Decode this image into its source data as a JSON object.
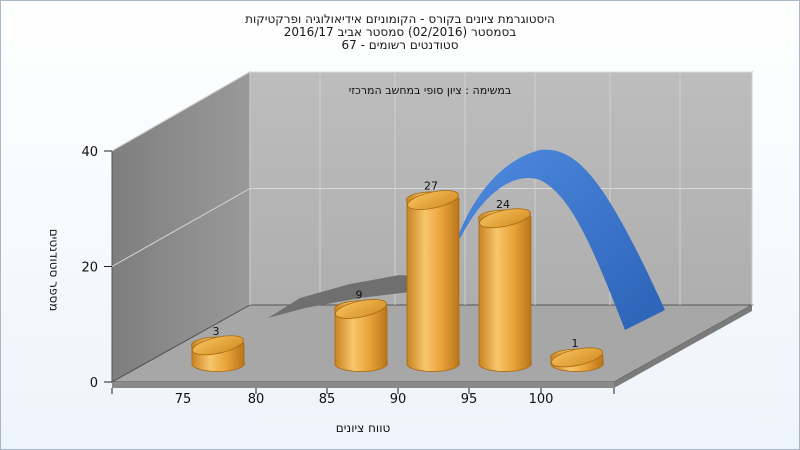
{
  "header": {
    "line1": "היסטוגרמת ציונים בקורס - הקומוניזם אידיאולוגיה ופרקטיקות",
    "line2": "בסמסטר  (02/2016)  סמסטר אביב 2016/17",
    "line3": "סטודנטים רשומים - 67"
  },
  "chart_data": {
    "type": "bar",
    "title": "היסטוגרמת ציונים בקורס - הקומוניזם אידיאולוגיה ופרקטיקות",
    "subtitle": "בסמסטר  (02/2016)  סמסטר אביב 2016/17 | סטודנטים רשומים - 67",
    "annotation": "במשימה : ציון סופי במחשב המרכזי",
    "xlabel": "טווח ציונים",
    "ylabel": "מספר סטודנטים",
    "x_ticks": [
      "75",
      "80",
      "85",
      "90",
      "95",
      "100"
    ],
    "y_ticks": [
      "0",
      "20",
      "40"
    ],
    "ylim": [
      0,
      40
    ],
    "grid": true,
    "series": [
      {
        "type": "bar",
        "x": [
          75,
          85,
          90,
          95,
          100
        ],
        "values": [
          3,
          9,
          27,
          24,
          1
        ],
        "color": "#e8a535"
      },
      {
        "type": "line",
        "note_visual": "3D ribbon distribution curve behind bars",
        "color_gray": "#707070",
        "color_blue": "#3a74c9"
      }
    ],
    "colors": {
      "bar": "#e8a535",
      "wall_left": "#8c8c8c",
      "wall_back": "#b9b9b9",
      "floor": "#a8a8a8"
    }
  }
}
